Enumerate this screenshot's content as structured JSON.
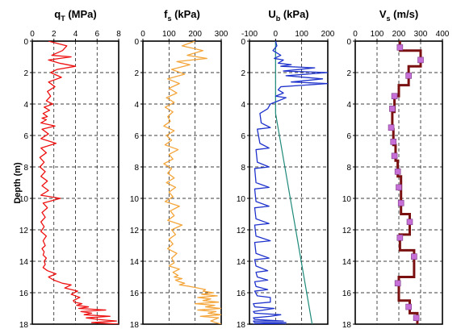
{
  "chart_data": [
    {
      "type": "line",
      "title_main": "q",
      "title_sub": "T",
      "title_unit": "(MPa)",
      "ylabel": "Depth (m)",
      "xlim": [
        0,
        8
      ],
      "ylim": [
        0,
        18
      ],
      "xticks": [
        "0",
        "2",
        "4",
        "6",
        "8"
      ],
      "yticks": [
        "0",
        "2",
        "4",
        "6",
        "8",
        "10",
        "12",
        "14",
        "16",
        "18"
      ],
      "color": "#ee1111",
      "series": [
        {
          "x": [
            1.5,
            3.2,
            2.8,
            1.8,
            3.6,
            1.5,
            2.5,
            4.0,
            2.3,
            1.7,
            2.7,
            1.5,
            2.1,
            1.4,
            1.7,
            1.3,
            1.9,
            1.1,
            1.6,
            1.0,
            1.4,
            0.9,
            1.3,
            0.8,
            2.1,
            0.9,
            1.5,
            0.8,
            2.2,
            0.8,
            1.3,
            0.7,
            1.1,
            0.7,
            1.2,
            0.8,
            1.4,
            0.9,
            1.5,
            0.8,
            2.6,
            1.0,
            1.4,
            0.9,
            1.2,
            0.8,
            1.1,
            0.8,
            1.3,
            1.0,
            1.2,
            0.9,
            1.1,
            1.0,
            1.3,
            1.1,
            1.2,
            1.0,
            1.4,
            2.2,
            1.5,
            2.0,
            2.8,
            3.6,
            3.0,
            4.2,
            3.6,
            4.4,
            3.8,
            3.9,
            4.6,
            4.1,
            5.2,
            4.3,
            6.8,
            4.5,
            5.5,
            4.8,
            7.2,
            5.0,
            6.1,
            7.8,
            5.5,
            8.0
          ],
          "y": [
            0.0,
            0.3,
            0.6,
            0.9,
            1.0,
            1.2,
            1.4,
            1.6,
            1.8,
            2.0,
            2.3,
            2.6,
            2.9,
            3.2,
            3.5,
            3.8,
            4.0,
            4.2,
            4.4,
            4.6,
            4.8,
            4.9,
            5.0,
            5.2,
            5.4,
            5.6,
            5.9,
            6.2,
            6.5,
            6.8,
            7.1,
            7.4,
            7.7,
            8.0,
            8.3,
            8.6,
            8.9,
            9.2,
            9.5,
            9.8,
            10.0,
            10.3,
            10.6,
            10.9,
            11.2,
            11.5,
            11.8,
            12.1,
            12.4,
            12.7,
            13.0,
            13.2,
            13.4,
            13.6,
            13.8,
            14.0,
            14.2,
            14.4,
            14.6,
            14.8,
            15.0,
            15.2,
            15.4,
            15.5,
            15.7,
            15.9,
            16.1,
            16.3,
            16.5,
            16.6,
            16.7,
            16.8,
            16.9,
            17.0,
            17.1,
            17.2,
            17.3,
            17.4,
            17.5,
            17.6,
            17.7,
            17.8,
            17.9,
            18.0
          ]
        }
      ]
    },
    {
      "type": "line",
      "title_main": "f",
      "title_sub": "s",
      "title_unit": "(kPa)",
      "xlim": [
        0,
        300
      ],
      "ylim": [
        0,
        18
      ],
      "xticks": [
        "0",
        "100",
        "200",
        "300"
      ],
      "yticks": [
        "0",
        "2",
        "4",
        "6",
        "8",
        "10",
        "12",
        "14",
        "16",
        "18"
      ],
      "color": "#f4a53a",
      "series": [
        {
          "x": [
            200,
            150,
            230,
            170,
            245,
            130,
            180,
            110,
            160,
            95,
            140,
            100,
            130,
            90,
            120,
            85,
            115,
            95,
            105,
            80,
            120,
            90,
            110,
            85,
            135,
            100,
            115,
            80,
            110,
            95,
            120,
            90,
            125,
            100,
            115,
            85,
            140,
            105,
            120,
            95,
            150,
            110,
            125,
            100,
            115,
            95,
            130,
            110,
            120,
            100,
            140,
            115,
            135,
            120,
            150,
            125,
            140,
            160,
            140,
            180,
            210,
            240,
            230,
            270,
            225,
            285,
            210,
            260,
            230,
            290,
            200,
            275,
            240,
            300,
            210,
            280,
            250,
            300,
            220,
            290,
            260,
            300
          ],
          "y": [
            0.0,
            0.3,
            0.6,
            0.9,
            1.1,
            1.3,
            1.5,
            1.8,
            2.1,
            2.4,
            2.7,
            3.0,
            3.3,
            3.6,
            3.9,
            4.2,
            4.5,
            4.8,
            5.1,
            5.4,
            5.7,
            6.0,
            6.3,
            6.6,
            6.9,
            7.2,
            7.5,
            7.8,
            8.1,
            8.4,
            8.7,
            9.0,
            9.3,
            9.6,
            9.9,
            10.2,
            10.5,
            10.8,
            11.1,
            11.4,
            11.7,
            12.0,
            12.3,
            12.6,
            12.9,
            13.2,
            13.5,
            13.8,
            14.1,
            14.3,
            14.5,
            14.7,
            14.9,
            15.0,
            15.1,
            15.2,
            15.3,
            15.4,
            15.5,
            15.6,
            15.7,
            15.8,
            15.9,
            16.0,
            16.1,
            16.2,
            16.3,
            16.4,
            16.5,
            16.6,
            16.7,
            16.8,
            16.9,
            17.0,
            17.1,
            17.2,
            17.3,
            17.4,
            17.5,
            17.6,
            17.8,
            18.0
          ]
        }
      ]
    },
    {
      "type": "line",
      "title_main": "U",
      "title_sub": "b",
      "title_unit": "(kPa)",
      "xlim": [
        -100,
        200
      ],
      "ylim": [
        0,
        18
      ],
      "xticks": [
        "-100",
        "0",
        "100",
        "200"
      ],
      "yticks": [
        "0",
        "2",
        "4",
        "6",
        "8",
        "10",
        "12",
        "14",
        "16",
        "18"
      ],
      "color": "#1f33cc",
      "hydrostatic": {
        "x": [
          0,
          0,
          140
        ],
        "y": [
          0,
          4.6,
          18
        ],
        "color": "#1e8a7a"
      },
      "series": [
        {
          "x": [
            0,
            5,
            -10,
            20,
            -5,
            30,
            10,
            60,
            20,
            150,
            30,
            200,
            40,
            180,
            60,
            200,
            20,
            10,
            30,
            0,
            40,
            10,
            -20,
            -30,
            -60,
            -55,
            -20,
            -70,
            -60,
            -25,
            -75,
            -70,
            -25,
            -80,
            -75,
            -25,
            -80,
            -75,
            -25,
            -80,
            -75,
            -25,
            -80,
            -75,
            -20,
            -80,
            -75,
            -25,
            -80,
            -75,
            -30,
            -75,
            -70,
            -30,
            -80,
            -75,
            -30,
            -80,
            -70,
            -20,
            -20,
            -85,
            -80,
            -5,
            -85,
            -80,
            20,
            -20,
            -85,
            -80,
            30,
            -85,
            -80,
            40,
            -85,
            -80,
            40
          ],
          "y": [
            0.0,
            0.3,
            0.6,
            0.9,
            1.1,
            1.2,
            1.4,
            1.5,
            1.6,
            1.7,
            1.9,
            2.0,
            2.2,
            2.4,
            2.6,
            2.7,
            2.9,
            3.1,
            3.3,
            3.5,
            3.6,
            3.8,
            4.0,
            4.3,
            4.6,
            5.2,
            5.5,
            5.6,
            6.5,
            6.8,
            6.9,
            7.7,
            8.0,
            8.1,
            9.0,
            9.3,
            9.4,
            10.2,
            10.5,
            10.6,
            11.3,
            11.6,
            11.7,
            12.4,
            12.7,
            12.8,
            13.5,
            13.8,
            13.9,
            14.3,
            14.6,
            14.7,
            15.0,
            15.2,
            15.3,
            15.6,
            15.8,
            15.9,
            16.2,
            16.3,
            16.6,
            16.7,
            16.9,
            17.0,
            17.2,
            17.3,
            17.4,
            17.5,
            17.6,
            17.7,
            17.8,
            17.8,
            17.9,
            17.9,
            18.0,
            18.0,
            18.0
          ]
        }
      ]
    },
    {
      "type": "line",
      "title_main": "V",
      "title_sub": "s",
      "title_unit": "(m/s)",
      "xlim": [
        0,
        400
      ],
      "ylim": [
        0,
        18
      ],
      "xticks": [
        "0",
        "100",
        "200",
        "300",
        "400"
      ],
      "yticks": [
        "0",
        "2",
        "4",
        "6",
        "8",
        "10",
        "12",
        "14",
        "16",
        "18"
      ],
      "color": "#7a1010",
      "marker_color": "#c66fd6",
      "steps": [
        {
          "v": 205,
          "top": 0.0,
          "bottom": 0.6
        },
        {
          "v": 300,
          "top": 0.6,
          "bottom": 1.6
        },
        {
          "v": 245,
          "top": 1.6,
          "bottom": 2.8
        },
        {
          "v": 200,
          "top": 2.8,
          "bottom": 3.5
        },
        {
          "v": 180,
          "top": 3.5,
          "bottom": 4.5
        },
        {
          "v": 170,
          "top": 4.5,
          "bottom": 5.6
        },
        {
          "v": 175,
          "top": 5.6,
          "bottom": 6.6
        },
        {
          "v": 185,
          "top": 6.6,
          "bottom": 7.6
        },
        {
          "v": 195,
          "top": 7.6,
          "bottom": 8.6
        },
        {
          "v": 210,
          "top": 8.6,
          "bottom": 11.0
        },
        {
          "v": 250,
          "top": 11.0,
          "bottom": 12.3
        },
        {
          "v": 205,
          "top": 12.3,
          "bottom": 13.3
        },
        {
          "v": 270,
          "top": 13.3,
          "bottom": 15.0
        },
        {
          "v": 200,
          "top": 15.0,
          "bottom": 16.5
        },
        {
          "v": 250,
          "top": 16.5,
          "bottom": 17.3
        },
        {
          "v": 285,
          "top": 17.3,
          "bottom": 18.0
        }
      ],
      "points": [
        {
          "x": 205,
          "y": 0.4
        },
        {
          "x": 300,
          "y": 1.2
        },
        {
          "x": 245,
          "y": 2.2
        },
        {
          "x": 180,
          "y": 3.5
        },
        {
          "x": 170,
          "y": 4.3
        },
        {
          "x": 165,
          "y": 5.5
        },
        {
          "x": 175,
          "y": 6.4
        },
        {
          "x": 180,
          "y": 7.3
        },
        {
          "x": 195,
          "y": 8.3
        },
        {
          "x": 200,
          "y": 9.3
        },
        {
          "x": 210,
          "y": 10.3
        },
        {
          "x": 250,
          "y": 11.5
        },
        {
          "x": 205,
          "y": 12.5
        },
        {
          "x": 270,
          "y": 13.7
        },
        {
          "x": 195,
          "y": 15.4
        },
        {
          "x": 245,
          "y": 16.9
        },
        {
          "x": 280,
          "y": 17.6
        }
      ]
    }
  ]
}
